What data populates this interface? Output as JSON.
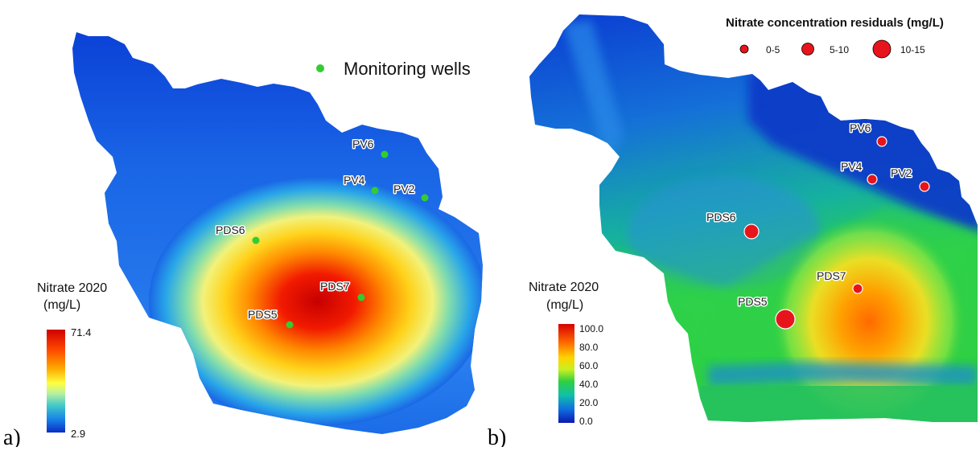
{
  "panel_a": {
    "label": "a)",
    "legend_wells": "Monitoring wells",
    "colorbar": {
      "title_line1": "Nitrate 2020",
      "title_line2": "(mg/L)",
      "max": "71.4",
      "min": "2.9"
    },
    "wells": [
      {
        "id": "PV6",
        "label": "PV6"
      },
      {
        "id": "PV4",
        "label": "PV4"
      },
      {
        "id": "PV2",
        "label": "PV2"
      },
      {
        "id": "PDS6",
        "label": "PDS6"
      },
      {
        "id": "PDS7",
        "label": "PDS7"
      },
      {
        "id": "PDS5",
        "label": "PDS5"
      }
    ],
    "well_color": "#33cc33"
  },
  "panel_b": {
    "label": "b)",
    "colorbar": {
      "title_line1": "Nitrate 2020",
      "title_line2": "(mg/L)",
      "ticks": [
        "100.0",
        "80.0",
        "60.0",
        "40.0",
        "20.0",
        "0.0"
      ]
    },
    "residuals_legend": {
      "title": "Nitrate concentration residuals (mg/L)",
      "classes": [
        "0-5",
        "5-10",
        "10-15"
      ]
    },
    "wells": [
      {
        "id": "PV6",
        "label": "PV6",
        "residual_class": "0-5"
      },
      {
        "id": "PV4",
        "label": "PV4",
        "residual_class": "0-5"
      },
      {
        "id": "PV2",
        "label": "PV2",
        "residual_class": "0-5"
      },
      {
        "id": "PDS6",
        "label": "PDS6",
        "residual_class": "5-10"
      },
      {
        "id": "PDS7",
        "label": "PDS7",
        "residual_class": "0-5"
      },
      {
        "id": "PDS5",
        "label": "PDS5",
        "residual_class": "10-15"
      }
    ],
    "marker_color": "#e8141c"
  }
}
